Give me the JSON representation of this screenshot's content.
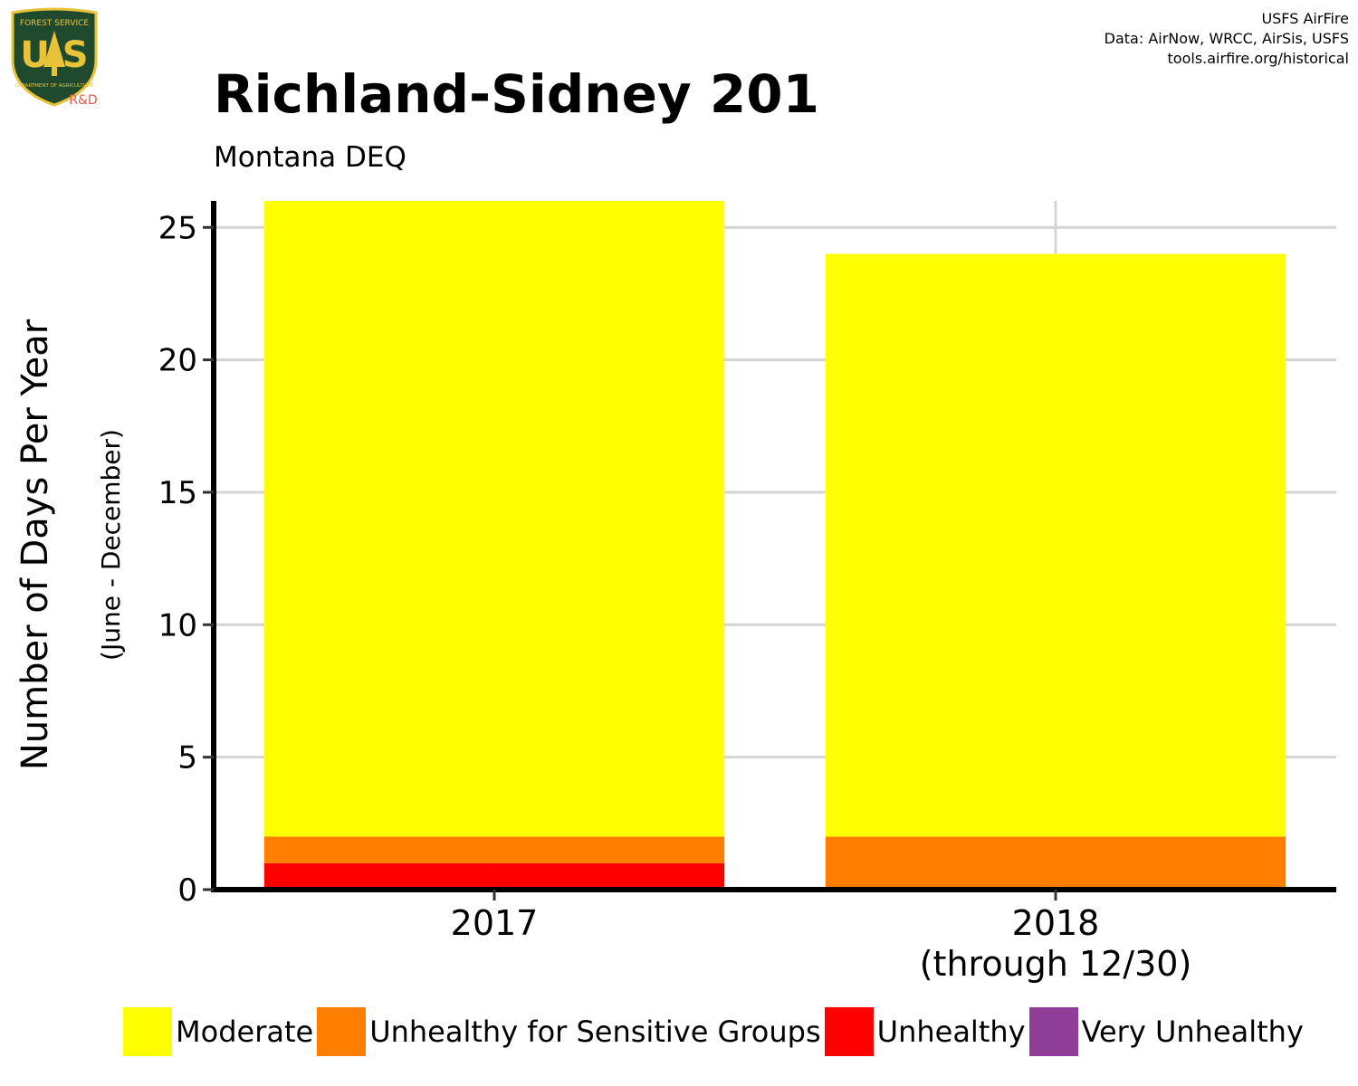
{
  "logo": {
    "icon": "usfs-shield-icon",
    "top_text": "FOREST SERVICE",
    "letters": "U S",
    "bottom_text": "DEPARTMENT OF AGRICULTURE",
    "badge": "R&D",
    "colors": {
      "shield": "#1f4a2e",
      "gold": "#e8c33a",
      "badge": "#e85a4a"
    }
  },
  "credits": {
    "line1": "USFS AirFire",
    "line2": "Data: AirNow, WRCC, AirSis, USFS",
    "line3": "tools.airfire.org/historical"
  },
  "chart_data": {
    "type": "bar",
    "stacked": true,
    "title": "Richland-Sidney 201",
    "subtitle": "Montana DEQ",
    "xlabel": "",
    "ylabel": "Number of Days Per Year",
    "ylabel_sub": "(June - December)",
    "categories": [
      "2017",
      "2018"
    ],
    "category_sublabels": [
      "",
      "(through 12/30)"
    ],
    "ylim": [
      0,
      26
    ],
    "yticks": [
      0,
      5,
      10,
      15,
      20,
      25
    ],
    "grid": true,
    "legend_position": "bottom",
    "series": [
      {
        "name": "Unhealthy",
        "color": "#ff0000",
        "values": [
          1,
          0
        ]
      },
      {
        "name": "Unhealthy for Sensitive Groups",
        "color": "#ff7e00",
        "values": [
          1,
          2
        ]
      },
      {
        "name": "Moderate",
        "color": "#ffff00",
        "values": [
          24,
          22
        ]
      },
      {
        "name": "Very Unhealthy",
        "color": "#8f3f97",
        "values": [
          0,
          0
        ]
      }
    ],
    "legend_order": [
      "Moderate",
      "Unhealthy for Sensitive Groups",
      "Unhealthy",
      "Very Unhealthy"
    ]
  }
}
